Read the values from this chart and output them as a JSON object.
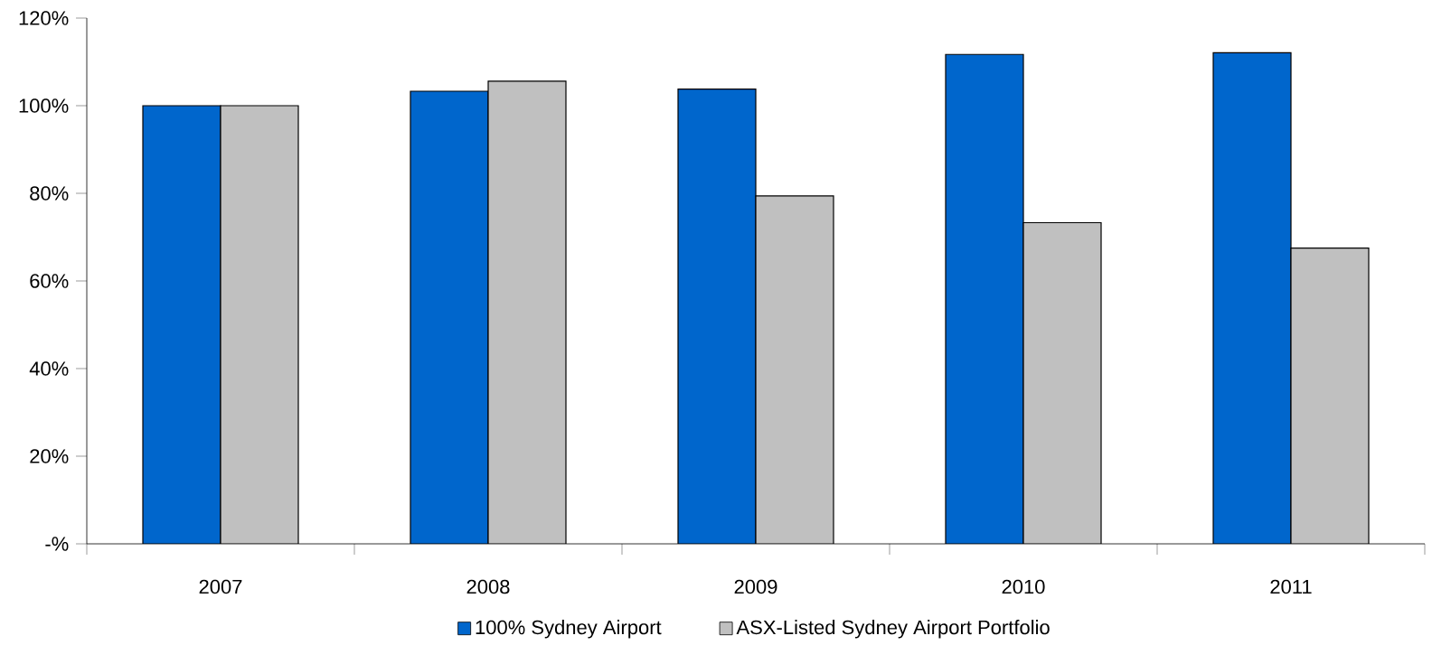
{
  "chart_data": {
    "type": "bar",
    "categories": [
      "2007",
      "2008",
      "2009",
      "2010",
      "2011"
    ],
    "series": [
      {
        "name": "100% Sydney Airport",
        "color": "#0066cc",
        "values": [
          100,
          103.3,
          103.8,
          111.7,
          112.1
        ]
      },
      {
        "name": "ASX-Listed Sydney Airport Portfolio",
        "color": "#c0c0c0",
        "values": [
          100,
          105.6,
          79.4,
          73.3,
          67.5
        ]
      }
    ],
    "ylim": [
      0,
      120
    ],
    "yticks": [
      {
        "value": 0,
        "label": "-%"
      },
      {
        "value": 20,
        "label": "20%"
      },
      {
        "value": 40,
        "label": "40%"
      },
      {
        "value": 60,
        "label": "60%"
      },
      {
        "value": 80,
        "label": "80%"
      },
      {
        "value": 100,
        "label": "100%"
      },
      {
        "value": 120,
        "label": "120%"
      }
    ],
    "legend": "bottom",
    "grid": false
  }
}
